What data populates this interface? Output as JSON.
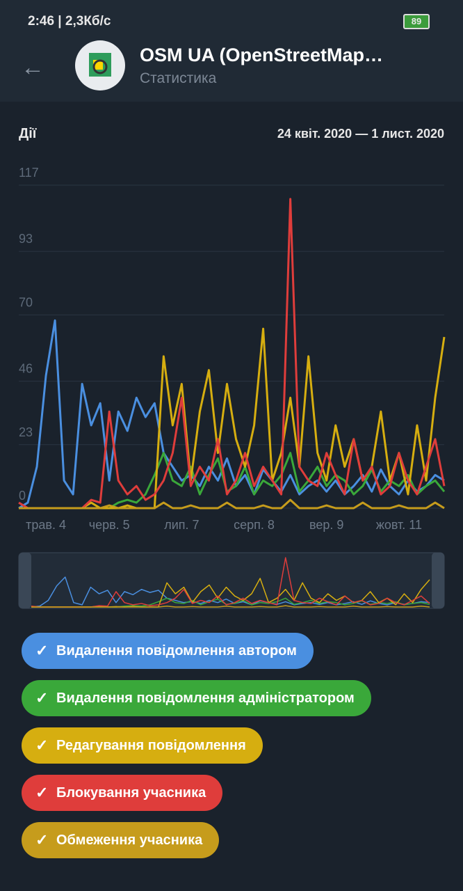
{
  "status_bar": {
    "time": "2:46 | 2,3Кб/с",
    "battery": "89"
  },
  "header": {
    "title": "OSM UA (OpenStreetMap…",
    "subtitle": "Статистика"
  },
  "chart_data": {
    "type": "line",
    "title": "Дії",
    "subtitle": "24 квіт. 2020 — 1 лист. 2020",
    "categories": [
      null,
      null,
      null,
      "трав. 4",
      null,
      null,
      null,
      null,
      null,
      null,
      "черв. 5",
      null,
      null,
      null,
      null,
      null,
      null,
      null,
      "лип. 7",
      null,
      null,
      null,
      null,
      null,
      null,
      null,
      "серп. 8",
      null,
      null,
      null,
      null,
      null,
      null,
      null,
      "вер. 9",
      null,
      null,
      null,
      null,
      null,
      null,
      null,
      "жовт. 11",
      null,
      null,
      null,
      null,
      null
    ],
    "ylim": [
      0,
      117
    ],
    "yticks": [
      0,
      23,
      46,
      70,
      93,
      117
    ],
    "grid": true,
    "series": [
      {
        "name": "Видалення повідомлення автором",
        "color": "#4a8fe0",
        "values": [
          0,
          2,
          15,
          48,
          68,
          10,
          5,
          45,
          30,
          38,
          10,
          35,
          28,
          40,
          33,
          38,
          20,
          15,
          10,
          12,
          8,
          15,
          10,
          18,
          8,
          12,
          5,
          14,
          10,
          6,
          12,
          5,
          8,
          10,
          6,
          10,
          5,
          8,
          12,
          6,
          14,
          8,
          5,
          10,
          6,
          8,
          12,
          10
        ]
      },
      {
        "name": "Видалення повідомлення адміністратором",
        "color": "#3aa83a",
        "values": [
          0,
          0,
          0,
          0,
          0,
          0,
          0,
          0,
          0,
          0,
          0,
          2,
          3,
          2,
          5,
          12,
          20,
          10,
          8,
          15,
          5,
          12,
          18,
          6,
          8,
          15,
          5,
          10,
          8,
          12,
          20,
          6,
          10,
          15,
          8,
          12,
          10,
          5,
          8,
          14,
          6,
          10,
          8,
          12,
          5,
          8,
          10,
          6
        ]
      },
      {
        "name": "Редагування повідомлення",
        "color": "#d6ae10",
        "values": [
          0,
          0,
          0,
          0,
          0,
          0,
          0,
          0,
          2,
          0,
          0,
          0,
          1,
          0,
          0,
          0,
          55,
          30,
          45,
          10,
          35,
          50,
          20,
          45,
          25,
          15,
          30,
          65,
          10,
          20,
          40,
          15,
          55,
          20,
          10,
          30,
          15,
          25,
          10,
          15,
          35,
          10,
          20,
          5,
          30,
          10,
          40,
          62
        ]
      },
      {
        "name": "Блокування учасника",
        "color": "#df3d3b",
        "values": [
          2,
          0,
          0,
          0,
          0,
          0,
          0,
          0,
          3,
          2,
          35,
          10,
          5,
          8,
          3,
          5,
          10,
          20,
          40,
          8,
          15,
          10,
          25,
          5,
          10,
          20,
          8,
          15,
          10,
          5,
          112,
          15,
          10,
          8,
          20,
          12,
          5,
          25,
          10,
          15,
          5,
          8,
          20,
          10,
          5,
          15,
          25,
          8
        ]
      },
      {
        "name": "Обмеження учасника",
        "color": "#c69c1c",
        "values": [
          0,
          0,
          0,
          0,
          0,
          0,
          0,
          0,
          0,
          0,
          1,
          0,
          0,
          0,
          0,
          0,
          2,
          0,
          0,
          1,
          0,
          0,
          0,
          2,
          0,
          0,
          0,
          1,
          0,
          0,
          3,
          0,
          0,
          0,
          1,
          0,
          0,
          0,
          2,
          0,
          0,
          0,
          1,
          0,
          0,
          0,
          2,
          0
        ]
      }
    ]
  }
}
